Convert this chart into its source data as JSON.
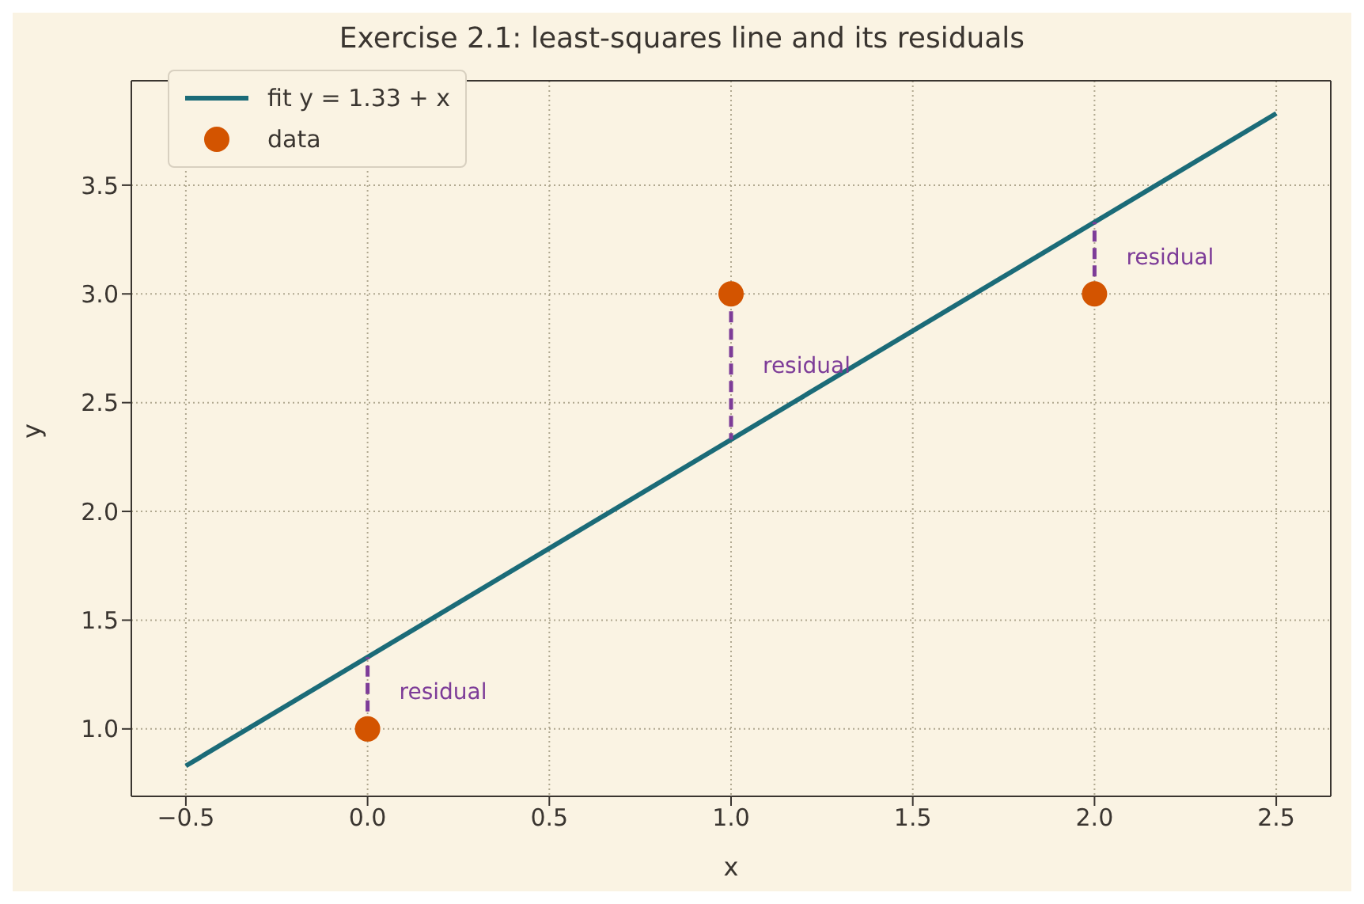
{
  "chart_data": {
    "type": "line",
    "title": "Exercise 2.1: least-squares line and its residuals",
    "xlabel": "x",
    "ylabel": "y",
    "xlim": [
      -0.65,
      2.65
    ],
    "xticks": [
      {
        "value": -0.5,
        "label": "−0.5"
      },
      {
        "value": 0,
        "label": "0.0"
      },
      {
        "value": 0.5,
        "label": "0.5"
      },
      {
        "value": 1,
        "label": "1.0"
      },
      {
        "value": 1.5,
        "label": "1.5"
      },
      {
        "value": 2,
        "label": "2.0"
      },
      {
        "value": 2.5,
        "label": "2.5"
      }
    ],
    "ylim": [
      0.69,
      3.98
    ],
    "yticks": [
      {
        "value": 1,
        "label": "1.0"
      },
      {
        "value": 1.5,
        "label": "1.5"
      },
      {
        "value": 2,
        "label": "2.0"
      },
      {
        "value": 2.5,
        "label": "2.5"
      },
      {
        "value": 3,
        "label": "3.0"
      },
      {
        "value": 3.5,
        "label": "3.5"
      }
    ],
    "grid": true,
    "legend": "top left",
    "series": [
      {
        "name": "fit y = 1.33 + x",
        "color": "#1b6b78",
        "x": [
          -0.5,
          2.5
        ],
        "values": [
          0.83,
          3.83
        ],
        "marker": "none",
        "line_style": "solid"
      },
      {
        "type": "line",
        "color": "#7d3c98",
        "x": [
          0,
          0
        ],
        "values": [
          1,
          1.33
        ],
        "marker": "none",
        "line_style": "dashed"
      },
      {
        "type": "line",
        "color": "#7d3c98",
        "x": [
          1,
          1
        ],
        "values": [
          3,
          2.33
        ],
        "marker": "none",
        "line_style": "dashed"
      },
      {
        "type": "line",
        "color": "#7d3c98",
        "x": [
          2,
          2
        ],
        "values": [
          3,
          3.33
        ],
        "marker": "none",
        "line_style": "dashed"
      },
      {
        "name": "data",
        "type": "scatter",
        "color": "#d35400",
        "x": [
          0,
          1,
          2
        ],
        "values": [
          1,
          3,
          3
        ],
        "marker": "circle"
      }
    ],
    "annotations": [
      "residual",
      "residual",
      "residual"
    ]
  }
}
